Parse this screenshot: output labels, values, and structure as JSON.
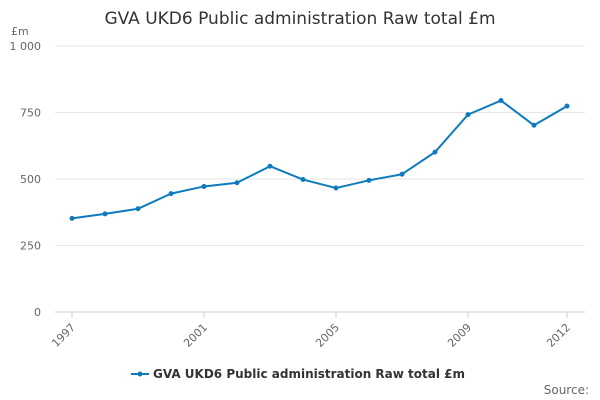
{
  "chart_data": {
    "type": "line",
    "title": "GVA UKD6 Public administration Raw total £m",
    "ylabel": "£m",
    "xlabel": "",
    "ylim": [
      0,
      1000
    ],
    "yticks": [
      0,
      250,
      500,
      750,
      1000
    ],
    "ytick_labels": [
      "0",
      "250",
      "500",
      "750",
      "1 000"
    ],
    "x": [
      1997,
      1998,
      1999,
      2000,
      2001,
      2002,
      2003,
      2004,
      2005,
      2006,
      2007,
      2008,
      2009,
      2010,
      2011,
      2012
    ],
    "xtick_labels": [
      "1997",
      "2001",
      "2005",
      "2009",
      "2012"
    ],
    "xtick_values": [
      1997,
      2001,
      2005,
      2009,
      2012
    ],
    "series": [
      {
        "name": "GVA UKD6 Public administration Raw total £m",
        "color": "#0e7bbe",
        "values": [
          352,
          369,
          388,
          445,
          472,
          486,
          548,
          498,
          466,
          495,
          518,
          601,
          742,
          795,
          702,
          774
        ]
      }
    ],
    "grid": true,
    "legend": "bottom-center",
    "source_label": "Source:"
  }
}
